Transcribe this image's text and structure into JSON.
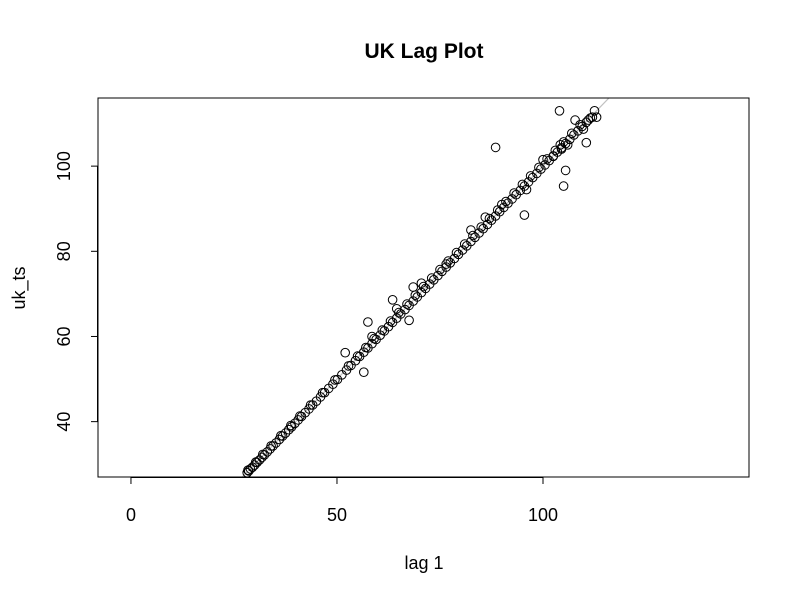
{
  "chart_data": {
    "type": "scatter",
    "title": "UK Lag Plot",
    "xlabel": "lag 1",
    "ylabel": "uk_ts",
    "xlim": [
      -8,
      150
    ],
    "ylim": [
      27,
      116
    ],
    "x_ticks": [
      0,
      50,
      100
    ],
    "y_ticks": [
      40,
      60,
      80,
      100
    ],
    "grid": false,
    "legend": "none",
    "reference_line": {
      "slope": 1,
      "intercept": 0,
      "color": "#c0c0c0"
    },
    "marker": "open-circle",
    "point_color": "#000000",
    "series": [
      {
        "x": [
          28.2,
          28.6,
          29.0,
          29.5,
          30.0,
          30.6,
          31.2,
          31.8,
          32.4,
          33.1,
          33.8,
          34.5,
          35.2,
          36.0,
          36.8,
          37.5,
          38.3,
          39.0,
          39.8,
          40.6,
          41.4,
          42.3,
          43.2,
          44.1,
          45.0,
          46.0,
          47.0,
          48.0,
          49.0,
          50.1,
          51.2,
          52.3,
          53.4,
          54.5,
          55.5,
          56.5,
          57.5,
          58.5,
          59.5,
          60.5,
          61.5,
          62.5,
          63.5,
          64.5,
          65.5,
          66.5,
          67.5,
          68.5,
          69.5,
          70.5,
          71.5,
          72.5,
          73.5,
          74.5,
          75.5,
          76.5,
          77.5,
          78.5,
          79.5,
          80.5,
          81.5,
          82.5,
          83.5,
          84.5,
          85.5,
          86.5,
          87.5,
          88.5,
          89.5,
          90.5,
          91.5,
          92.5,
          93.5,
          94.5,
          95.5,
          96.5,
          97.5,
          98.5,
          99.5,
          100.5,
          101.5,
          102.5,
          103.5,
          104.5,
          105.5,
          106.5,
          107.5,
          108.5,
          109.5,
          110.5,
          111.0,
          111.5,
          112.0,
          28.4,
          30.3,
          32.0,
          34.0,
          36.4,
          38.8,
          41.0,
          43.6,
          46.5,
          49.5,
          52.8,
          55.0,
          57.0,
          59.0,
          61.0,
          63.0,
          65.0,
          67.0,
          69.0,
          71.0,
          73.0,
          75.0,
          77.0,
          79.0,
          81.0,
          83.0,
          85.0,
          87.0,
          89.0,
          91.0,
          93.0,
          95.0,
          97.0,
          99.0,
          101.0,
          103.0,
          105.0,
          107.0,
          109.0,
          52.0,
          56.5,
          57.5,
          63.5,
          67.5,
          68.5,
          88.5,
          95.5,
          102.5,
          104.0,
          104.5,
          105.0,
          105.5,
          110.5,
          112.5,
          113.0,
          104.2,
          107.8,
          109.8,
          58.5,
          64.5,
          70.5,
          76.5,
          82.5,
          86.0,
          90.0,
          96.0,
          100.0,
          106.0
        ],
        "y": [
          28.0,
          28.4,
          28.9,
          29.3,
          29.8,
          30.4,
          31.0,
          31.6,
          32.2,
          32.9,
          33.6,
          34.3,
          35.0,
          35.8,
          36.6,
          37.3,
          38.1,
          38.8,
          39.6,
          40.4,
          41.2,
          42.1,
          43.0,
          43.9,
          44.8,
          45.8,
          46.8,
          47.8,
          48.8,
          49.9,
          51.0,
          52.1,
          53.2,
          54.3,
          55.3,
          56.3,
          57.3,
          58.3,
          59.3,
          60.3,
          61.3,
          62.3,
          63.3,
          64.3,
          65.3,
          66.3,
          67.3,
          68.3,
          69.3,
          70.3,
          71.3,
          72.3,
          73.3,
          74.3,
          75.3,
          76.3,
          77.3,
          78.3,
          79.3,
          80.3,
          81.3,
          82.3,
          83.3,
          84.3,
          85.3,
          86.3,
          87.3,
          88.3,
          89.3,
          90.3,
          91.3,
          92.3,
          93.3,
          94.3,
          95.3,
          96.3,
          97.3,
          98.3,
          99.3,
          100.3,
          101.3,
          102.3,
          103.3,
          104.3,
          105.3,
          106.3,
          107.3,
          108.3,
          109.3,
          110.3,
          110.8,
          111.3,
          111.5,
          28.6,
          30.5,
          32.3,
          34.3,
          36.7,
          39.1,
          41.3,
          43.9,
          46.8,
          49.8,
          53.1,
          55.4,
          57.4,
          59.5,
          61.5,
          63.6,
          65.6,
          67.6,
          69.7,
          71.7,
          73.7,
          75.7,
          77.7,
          79.7,
          81.7,
          83.7,
          85.7,
          87.7,
          89.7,
          91.7,
          93.7,
          95.7,
          97.7,
          99.7,
          101.7,
          103.7,
          105.7,
          107.7,
          109.7,
          56.2,
          51.6,
          63.4,
          68.6,
          63.8,
          71.6,
          104.4,
          88.5,
          102.4,
          113.0,
          104.0,
          95.3,
          99.0,
          105.5,
          113.0,
          111.5,
          105.0,
          110.8,
          108.7,
          60.0,
          66.5,
          72.5,
          77.0,
          85.0,
          88.0,
          91.0,
          94.5,
          101.5,
          105.0
        ]
      }
    ]
  }
}
